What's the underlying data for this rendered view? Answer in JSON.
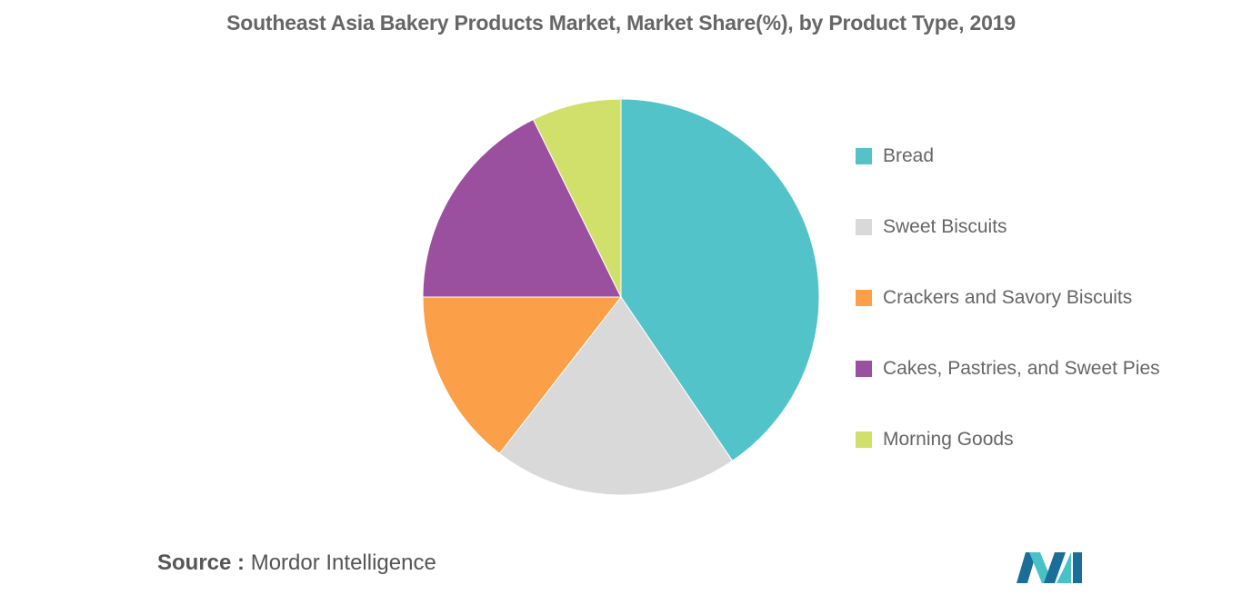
{
  "title": "Southeast Asia Bakery Products Market, Market Share(%), by Product Type, 2019",
  "source": {
    "label": "Source :",
    "value": "Mordor Intelligence"
  },
  "colors": {
    "bread": "#52c3c8",
    "sweet_biscuits": "#d9d9d9",
    "crackers": "#fba048",
    "cakes": "#9b4f9f",
    "morning_goods": "#d1e06a",
    "logo_dark": "#1b6e97",
    "logo_light": "#48c2c6"
  },
  "chart_data": {
    "type": "pie",
    "title": "Southeast Asia Bakery Products Market, Market Share(%), by Product Type, 2019",
    "start": "12 o'clock",
    "direction": "clockwise",
    "legend_position": "right",
    "slices": [
      {
        "label": "Bread",
        "value": 40.5,
        "color": "#52c3c8"
      },
      {
        "label": "Sweet Biscuits",
        "value": 20.0,
        "color": "#d9d9d9"
      },
      {
        "label": "Crackers and Savory Biscuits",
        "value": 14.5,
        "color": "#fba048"
      },
      {
        "label": "Cakes, Pastries, and Sweet Pies",
        "value": 17.7,
        "color": "#9b4f9f"
      },
      {
        "label": "Morning Goods",
        "value": 7.3,
        "color": "#d1e06a"
      }
    ]
  }
}
